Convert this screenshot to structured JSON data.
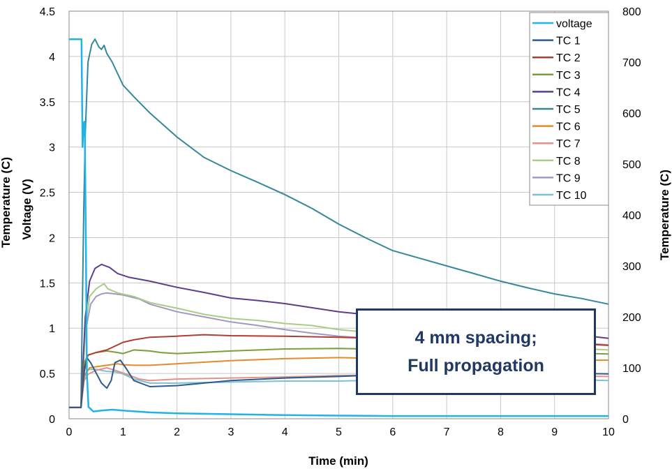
{
  "chart_data": {
    "type": "line",
    "xlabel": "Time (min)",
    "ylabel_left": "Voltage (V)",
    "ylabel_left_partial": "Temperature (C)",
    "ylabel_right": "Temperature (C)",
    "xlim": [
      0,
      10
    ],
    "ylim_left": [
      0,
      4.5
    ],
    "ylim_right": [
      0,
      800
    ],
    "x_ticks": [
      "0",
      "1",
      "2",
      "3",
      "4",
      "5",
      "6",
      "7",
      "8",
      "9",
      "10"
    ],
    "y_left_ticks": [
      "0",
      "0.5",
      "1",
      "1.5",
      "2",
      "2.5",
      "3",
      "3.5",
      "4",
      "4.5"
    ],
    "y_right_ticks": [
      "0",
      "100",
      "200",
      "300",
      "400",
      "500",
      "600",
      "700",
      "800"
    ],
    "grid": true,
    "legend_position": "top-right",
    "annotation": [
      "4 mm spacing;",
      "Full propagation"
    ],
    "series": [
      {
        "name": "voltage",
        "axis": "left",
        "color": "#1fb4e8",
        "width": 2.5,
        "points": [
          [
            0,
            4.19
          ],
          [
            0.23,
            4.19
          ],
          [
            0.25,
            3.0
          ],
          [
            0.27,
            3.27
          ],
          [
            0.29,
            3.28
          ],
          [
            0.31,
            2.0
          ],
          [
            0.33,
            0.5
          ],
          [
            0.36,
            0.13
          ],
          [
            0.45,
            0.08
          ],
          [
            0.6,
            0.09
          ],
          [
            0.8,
            0.1
          ],
          [
            1.0,
            0.09
          ],
          [
            1.5,
            0.07
          ],
          [
            2,
            0.06
          ],
          [
            3,
            0.05
          ],
          [
            4,
            0.04
          ],
          [
            5,
            0.035
          ],
          [
            6,
            0.03
          ],
          [
            7,
            0.03
          ],
          [
            8,
            0.03
          ],
          [
            9,
            0.03
          ],
          [
            10,
            0.03
          ]
        ]
      },
      {
        "name": "TC 1",
        "axis": "right",
        "color": "#2e5b8c",
        "width": 2,
        "points": [
          [
            0,
            22
          ],
          [
            0.22,
            22
          ],
          [
            0.28,
            90
          ],
          [
            0.33,
            120
          ],
          [
            0.4,
            110
          ],
          [
            0.5,
            90
          ],
          [
            0.6,
            70
          ],
          [
            0.7,
            60
          ],
          [
            0.78,
            75
          ],
          [
            0.85,
            110
          ],
          [
            0.95,
            115
          ],
          [
            1.05,
            100
          ],
          [
            1.2,
            75
          ],
          [
            1.5,
            63
          ],
          [
            2,
            65
          ],
          [
            3,
            75
          ],
          [
            4,
            80
          ],
          [
            5,
            83
          ],
          [
            6,
            87
          ],
          [
            7,
            90
          ],
          [
            8,
            90
          ],
          [
            9,
            90
          ],
          [
            10,
            88
          ]
        ]
      },
      {
        "name": "TC 2",
        "axis": "right",
        "color": "#b03c32",
        "width": 2,
        "points": [
          [
            0,
            22
          ],
          [
            0.22,
            22
          ],
          [
            0.28,
            100
          ],
          [
            0.35,
            125
          ],
          [
            0.5,
            130
          ],
          [
            0.7,
            135
          ],
          [
            0.9,
            145
          ],
          [
            1.0,
            150
          ],
          [
            1.2,
            155
          ],
          [
            1.5,
            160
          ],
          [
            2,
            162
          ],
          [
            2.5,
            165
          ],
          [
            3,
            163
          ],
          [
            4,
            162
          ],
          [
            5,
            160
          ],
          [
            6,
            157
          ],
          [
            7,
            155
          ],
          [
            8,
            153
          ],
          [
            9,
            150
          ],
          [
            10,
            144
          ]
        ]
      },
      {
        "name": "TC 3",
        "axis": "right",
        "color": "#7b9d3c",
        "width": 2,
        "points": [
          [
            0,
            22
          ],
          [
            0.22,
            22
          ],
          [
            0.28,
            110
          ],
          [
            0.35,
            125
          ],
          [
            0.5,
            130
          ],
          [
            0.7,
            133
          ],
          [
            0.9,
            130
          ],
          [
            1.0,
            128
          ],
          [
            1.2,
            135
          ],
          [
            1.5,
            133
          ],
          [
            1.7,
            130
          ],
          [
            2,
            128
          ],
          [
            3,
            133
          ],
          [
            4,
            137
          ],
          [
            5,
            138
          ],
          [
            6,
            136
          ],
          [
            7,
            134
          ],
          [
            8,
            133
          ],
          [
            9,
            130
          ],
          [
            10,
            127
          ]
        ]
      },
      {
        "name": "TC 4",
        "axis": "right",
        "color": "#5b3f8c",
        "width": 2,
        "points": [
          [
            0,
            22
          ],
          [
            0.22,
            22
          ],
          [
            0.3,
            200
          ],
          [
            0.38,
            270
          ],
          [
            0.48,
            295
          ],
          [
            0.6,
            303
          ],
          [
            0.75,
            297
          ],
          [
            0.9,
            285
          ],
          [
            1.1,
            278
          ],
          [
            1.5,
            270
          ],
          [
            2,
            258
          ],
          [
            2.5,
            248
          ],
          [
            3,
            237
          ],
          [
            3.5,
            232
          ],
          [
            4,
            226
          ],
          [
            4.5,
            218
          ],
          [
            5,
            210
          ],
          [
            6,
            199
          ],
          [
            7,
            190
          ],
          [
            8,
            181
          ],
          [
            9,
            170
          ],
          [
            10,
            158
          ]
        ]
      },
      {
        "name": "TC 5",
        "axis": "right",
        "color": "#34889a",
        "width": 2,
        "points": [
          [
            0,
            22
          ],
          [
            0.22,
            22
          ],
          [
            0.27,
            400
          ],
          [
            0.3,
            560
          ],
          [
            0.35,
            700
          ],
          [
            0.42,
            735
          ],
          [
            0.48,
            745
          ],
          [
            0.55,
            730
          ],
          [
            0.6,
            725
          ],
          [
            0.65,
            733
          ],
          [
            0.7,
            717
          ],
          [
            0.8,
            700
          ],
          [
            1.0,
            655
          ],
          [
            1.2,
            632
          ],
          [
            1.5,
            600
          ],
          [
            2,
            553
          ],
          [
            2.5,
            513
          ],
          [
            3,
            487
          ],
          [
            3.5,
            464
          ],
          [
            4,
            440
          ],
          [
            4.5,
            413
          ],
          [
            5,
            382
          ],
          [
            5.5,
            355
          ],
          [
            6,
            330
          ],
          [
            6.5,
            315
          ],
          [
            7,
            300
          ],
          [
            7.5,
            285
          ],
          [
            8,
            270
          ],
          [
            8.5,
            257
          ],
          [
            9,
            245
          ],
          [
            9.5,
            236
          ],
          [
            10,
            225
          ]
        ]
      },
      {
        "name": "TC 6",
        "axis": "right",
        "color": "#e58a2c",
        "width": 2,
        "points": [
          [
            0,
            22
          ],
          [
            0.22,
            22
          ],
          [
            0.28,
            85
          ],
          [
            0.38,
            100
          ],
          [
            0.5,
            102
          ],
          [
            0.7,
            105
          ],
          [
            0.9,
            108
          ],
          [
            1.0,
            106
          ],
          [
            1.2,
            105
          ],
          [
            1.5,
            105
          ],
          [
            2,
            108
          ],
          [
            3,
            114
          ],
          [
            4,
            118
          ],
          [
            5,
            120
          ],
          [
            6,
            118
          ],
          [
            7,
            117
          ],
          [
            8,
            115
          ],
          [
            9,
            114
          ],
          [
            10,
            115
          ]
        ]
      },
      {
        "name": "TC 7",
        "axis": "right",
        "color": "#e3928a",
        "width": 2,
        "points": [
          [
            0,
            22
          ],
          [
            0.22,
            22
          ],
          [
            0.28,
            75
          ],
          [
            0.36,
            88
          ],
          [
            0.5,
            95
          ],
          [
            0.7,
            100
          ],
          [
            0.85,
            95
          ],
          [
            1.0,
            90
          ],
          [
            1.3,
            78
          ],
          [
            1.5,
            75
          ],
          [
            2,
            78
          ],
          [
            3,
            80
          ],
          [
            4,
            82
          ],
          [
            5,
            85
          ],
          [
            6,
            86
          ],
          [
            7,
            86
          ],
          [
            8,
            85
          ],
          [
            9,
            84
          ],
          [
            10,
            83
          ]
        ]
      },
      {
        "name": "TC 8",
        "axis": "right",
        "color": "#a9cc86",
        "width": 2,
        "points": [
          [
            0,
            22
          ],
          [
            0.22,
            22
          ],
          [
            0.3,
            180
          ],
          [
            0.38,
            240
          ],
          [
            0.5,
            255
          ],
          [
            0.6,
            262
          ],
          [
            0.65,
            265
          ],
          [
            0.72,
            255
          ],
          [
            0.9,
            247
          ],
          [
            1.2,
            240
          ],
          [
            1.5,
            228
          ],
          [
            2,
            217
          ],
          [
            2.5,
            205
          ],
          [
            3,
            197
          ],
          [
            3.5,
            193
          ],
          [
            4,
            187
          ],
          [
            4.5,
            183
          ],
          [
            5,
            175
          ],
          [
            6,
            165
          ],
          [
            7,
            155
          ],
          [
            8,
            145
          ],
          [
            9,
            140
          ],
          [
            10,
            135
          ]
        ]
      },
      {
        "name": "TC 9",
        "axis": "right",
        "color": "#a496c4",
        "width": 2,
        "points": [
          [
            0,
            22
          ],
          [
            0.22,
            22
          ],
          [
            0.3,
            170
          ],
          [
            0.4,
            225
          ],
          [
            0.5,
            240
          ],
          [
            0.6,
            245
          ],
          [
            0.7,
            247
          ],
          [
            0.85,
            245
          ],
          [
            1.0,
            243
          ],
          [
            1.3,
            235
          ],
          [
            1.5,
            225
          ],
          [
            2,
            210
          ],
          [
            2.5,
            200
          ],
          [
            3,
            190
          ],
          [
            3.5,
            183
          ],
          [
            4,
            175
          ],
          [
            4.5,
            168
          ],
          [
            5,
            162
          ],
          [
            6,
            155
          ],
          [
            7,
            152
          ],
          [
            8,
            151
          ],
          [
            9,
            152
          ],
          [
            10,
            145
          ]
        ]
      },
      {
        "name": "TC 10",
        "axis": "right",
        "color": "#7fbfd4",
        "width": 2,
        "points": [
          [
            0,
            22
          ],
          [
            0.22,
            22
          ],
          [
            0.28,
            80
          ],
          [
            0.36,
            97
          ],
          [
            0.5,
            97
          ],
          [
            0.7,
            93
          ],
          [
            0.85,
            92
          ],
          [
            1.0,
            88
          ],
          [
            1.2,
            78
          ],
          [
            1.5,
            70
          ],
          [
            2,
            70
          ],
          [
            3,
            72
          ],
          [
            4,
            74
          ],
          [
            5,
            74
          ],
          [
            6,
            76
          ],
          [
            7,
            77
          ],
          [
            8,
            78
          ],
          [
            9,
            78
          ],
          [
            10,
            75
          ]
        ]
      }
    ]
  }
}
